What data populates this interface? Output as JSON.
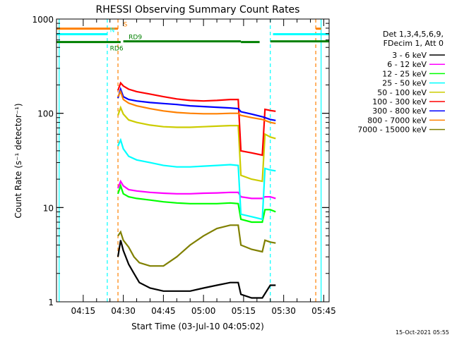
{
  "chart_data": {
    "type": "line",
    "title": "RHESSI Observing Summary Count Rates",
    "xlabel": "Start Time (03-Jul-10 04:05:02)",
    "ylabel": "Count Rate (s⁻¹ detector⁻¹)",
    "yscale": "log",
    "ylim": [
      1,
      1000
    ],
    "xlim": [
      "04:05",
      "05:47"
    ],
    "x_ticks": [
      "04:15",
      "04:30",
      "04:45",
      "05:00",
      "05:15",
      "05:30",
      "05:45"
    ],
    "y_ticks": [
      "1",
      "10",
      "100",
      "1000"
    ],
    "legend_header": [
      "Det 1,3,4,5,6,9,",
      "FDecim 1, Att 0"
    ],
    "legend_position": "right",
    "footer_date": "15-Oct-2021 05:55",
    "time_units": "HH:MM UT",
    "series": [
      {
        "name": "3 - 6 keV",
        "color": "#000000",
        "points": [
          [
            "04:28",
            3.0
          ],
          [
            "04:29",
            4.5
          ],
          [
            "04:30",
            3.5
          ],
          [
            "04:32",
            2.5
          ],
          [
            "04:34",
            2.0
          ],
          [
            "04:36",
            1.6
          ],
          [
            "04:40",
            1.4
          ],
          [
            "04:45",
            1.3
          ],
          [
            "04:50",
            1.3
          ],
          [
            "04:55",
            1.3
          ],
          [
            "05:00",
            1.4
          ],
          [
            "05:05",
            1.5
          ],
          [
            "05:10",
            1.6
          ],
          [
            "05:13",
            1.6
          ],
          [
            "05:14",
            1.2
          ],
          [
            "05:18",
            1.1
          ],
          [
            "05:22",
            1.1
          ],
          [
            "05:25",
            1.5
          ],
          [
            "05:27",
            1.5
          ]
        ]
      },
      {
        "name": "6 - 12 keV",
        "color": "#ff00ff",
        "points": [
          [
            "04:28",
            16
          ],
          [
            "04:29",
            19
          ],
          [
            "04:30",
            17
          ],
          [
            "04:32",
            15.5
          ],
          [
            "04:35",
            15
          ],
          [
            "04:40",
            14.5
          ],
          [
            "04:45",
            14.2
          ],
          [
            "04:50",
            14
          ],
          [
            "04:55",
            14
          ],
          [
            "05:00",
            14.2
          ],
          [
            "05:05",
            14.3
          ],
          [
            "05:10",
            14.5
          ],
          [
            "05:13",
            14.5
          ],
          [
            "05:14",
            13
          ],
          [
            "05:18",
            12.5
          ],
          [
            "05:22",
            12.5
          ],
          [
            "05:23",
            13
          ],
          [
            "05:25",
            13
          ],
          [
            "05:27",
            12.5
          ]
        ]
      },
      {
        "name": "12 - 25 keV",
        "color": "#00ff00",
        "points": [
          [
            "04:28",
            14
          ],
          [
            "04:29",
            17
          ],
          [
            "04:30",
            14
          ],
          [
            "04:32",
            13
          ],
          [
            "04:35",
            12.5
          ],
          [
            "04:40",
            12
          ],
          [
            "04:45",
            11.5
          ],
          [
            "04:50",
            11.2
          ],
          [
            "04:55",
            11
          ],
          [
            "05:00",
            11
          ],
          [
            "05:05",
            11
          ],
          [
            "05:10",
            11.2
          ],
          [
            "05:13",
            11
          ],
          [
            "05:14",
            7.5
          ],
          [
            "05:18",
            7
          ],
          [
            "05:22",
            7
          ],
          [
            "05:23",
            9.5
          ],
          [
            "05:25",
            9.5
          ],
          [
            "05:27",
            9.0
          ]
        ]
      },
      {
        "name": "25 - 50 keV",
        "color": "#00ffff",
        "points": [
          [
            "04:28",
            45
          ],
          [
            "04:29",
            52
          ],
          [
            "04:30",
            42
          ],
          [
            "04:32",
            35
          ],
          [
            "04:35",
            32
          ],
          [
            "04:40",
            30
          ],
          [
            "04:45",
            28
          ],
          [
            "04:50",
            27
          ],
          [
            "04:55",
            27
          ],
          [
            "05:00",
            27.5
          ],
          [
            "05:05",
            28
          ],
          [
            "05:10",
            28.5
          ],
          [
            "05:13",
            28
          ],
          [
            "05:14",
            8.5
          ],
          [
            "05:18",
            8.0
          ],
          [
            "05:22",
            7.5
          ],
          [
            "05:23",
            26
          ],
          [
            "05:25",
            25
          ],
          [
            "05:27",
            24.5
          ]
        ]
      },
      {
        "name": "50 - 100 keV",
        "color": "#cccc00",
        "points": [
          [
            "04:28",
            95
          ],
          [
            "04:29",
            115
          ],
          [
            "04:30",
            98
          ],
          [
            "04:32",
            85
          ],
          [
            "04:35",
            80
          ],
          [
            "04:40",
            75
          ],
          [
            "04:45",
            72
          ],
          [
            "04:50",
            71
          ],
          [
            "04:55",
            71
          ],
          [
            "05:00",
            72
          ],
          [
            "05:05",
            73
          ],
          [
            "05:10",
            74
          ],
          [
            "05:13",
            74
          ],
          [
            "05:14",
            22
          ],
          [
            "05:18",
            20
          ],
          [
            "05:22",
            19
          ],
          [
            "05:23",
            60
          ],
          [
            "05:25",
            56
          ],
          [
            "05:27",
            54
          ]
        ]
      },
      {
        "name": "100 - 300 keV",
        "color": "#ff0000",
        "points": [
          [
            "04:28",
            175
          ],
          [
            "04:29",
            210
          ],
          [
            "04:30",
            195
          ],
          [
            "04:32",
            180
          ],
          [
            "04:35",
            170
          ],
          [
            "04:40",
            160
          ],
          [
            "04:45",
            150
          ],
          [
            "04:50",
            142
          ],
          [
            "04:55",
            137
          ],
          [
            "05:00",
            135
          ],
          [
            "05:05",
            137
          ],
          [
            "05:10",
            140
          ],
          [
            "05:13",
            140
          ],
          [
            "05:14",
            40
          ],
          [
            "05:18",
            38
          ],
          [
            "05:22",
            36
          ],
          [
            "05:23",
            110
          ],
          [
            "05:25",
            107
          ],
          [
            "05:27",
            105
          ]
        ]
      },
      {
        "name": "300 - 800 keV",
        "color": "#0000ff",
        "points": [
          [
            "04:28",
            145
          ],
          [
            "04:29",
            180
          ],
          [
            "04:30",
            150
          ],
          [
            "04:32",
            140
          ],
          [
            "04:35",
            135
          ],
          [
            "04:40",
            130
          ],
          [
            "04:45",
            127
          ],
          [
            "04:50",
            124
          ],
          [
            "04:55",
            120
          ],
          [
            "05:00",
            118
          ],
          [
            "05:05",
            116
          ],
          [
            "05:10",
            114
          ],
          [
            "05:13",
            112
          ],
          [
            "05:14",
            104
          ],
          [
            "05:18",
            98
          ],
          [
            "05:22",
            92
          ],
          [
            "05:23",
            90
          ],
          [
            "05:25",
            86
          ],
          [
            "05:27",
            84
          ]
        ]
      },
      {
        "name": "800 - 7000 keV",
        "color": "#ff8000",
        "points": [
          [
            "04:28",
            150
          ],
          [
            "04:29",
            170
          ],
          [
            "04:30",
            140
          ],
          [
            "04:32",
            128
          ],
          [
            "04:35",
            120
          ],
          [
            "04:40",
            112
          ],
          [
            "04:45",
            106
          ],
          [
            "04:50",
            102
          ],
          [
            "04:55",
            100
          ],
          [
            "05:00",
            99
          ],
          [
            "05:05",
            99
          ],
          [
            "05:10",
            100
          ],
          [
            "05:13",
            100
          ],
          [
            "05:14",
            95
          ],
          [
            "05:18",
            90
          ],
          [
            "05:22",
            86
          ],
          [
            "05:23",
            84
          ],
          [
            "05:25",
            80
          ],
          [
            "05:27",
            78
          ]
        ]
      },
      {
        "name": "7000 - 15000 keV",
        "color": "#808000",
        "points": [
          [
            "04:28",
            5.0
          ],
          [
            "04:29",
            5.5
          ],
          [
            "04:30",
            4.5
          ],
          [
            "04:32",
            3.8
          ],
          [
            "04:34",
            3.0
          ],
          [
            "04:36",
            2.6
          ],
          [
            "04:40",
            2.4
          ],
          [
            "04:45",
            2.4
          ],
          [
            "04:50",
            3.0
          ],
          [
            "04:55",
            4.0
          ],
          [
            "05:00",
            5.0
          ],
          [
            "05:05",
            6.0
          ],
          [
            "05:10",
            6.5
          ],
          [
            "05:13",
            6.5
          ],
          [
            "05:14",
            4.0
          ],
          [
            "05:18",
            3.6
          ],
          [
            "05:22",
            3.4
          ],
          [
            "05:23",
            4.5
          ],
          [
            "05:25",
            4.3
          ],
          [
            "05:27",
            4.2
          ]
        ]
      }
    ],
    "flags": [
      {
        "label": "S",
        "color": "#ff8000",
        "level": 790,
        "segments": [
          [
            "04:05",
            "04:28"
          ],
          [
            "05:42",
            "05:44"
          ]
        ],
        "label_at": "04:30"
      },
      {
        "label": "N",
        "color": "#00ffff",
        "level": 690,
        "segments": [
          [
            "04:05",
            "04:24"
          ],
          [
            "05:26",
            "05:47"
          ]
        ],
        "label_at": "04:25"
      },
      {
        "label": "RD9",
        "color": "#008000",
        "level": 580,
        "segments": [
          [
            "04:30",
            "05:14"
          ],
          [
            "05:25",
            "05:47"
          ]
        ],
        "label_at": "04:32"
      },
      {
        "label": "RD6",
        "color": "#008000",
        "level": 570,
        "segments": [
          [
            "04:05",
            "04:29"
          ],
          [
            "05:14",
            "05:21"
          ]
        ],
        "label_at": "04:25"
      }
    ],
    "markers": [
      {
        "time": "04:06",
        "color": "#00ffff"
      },
      {
        "time": "04:24",
        "color": "#00ffff"
      },
      {
        "time": "05:25",
        "color": "#00ffff"
      },
      {
        "time": "05:44",
        "color": "#00ffff"
      },
      {
        "time": "04:28",
        "color": "#ff8000"
      },
      {
        "time": "05:42",
        "color": "#ff8000"
      }
    ]
  }
}
